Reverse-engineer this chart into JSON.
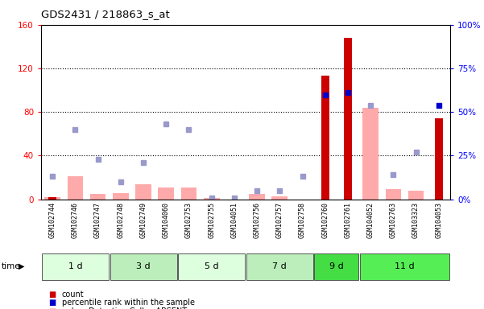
{
  "title": "GDS2431 / 218863_s_at",
  "samples": [
    "GSM102744",
    "GSM102746",
    "GSM102747",
    "GSM102748",
    "GSM102749",
    "GSM104060",
    "GSM102753",
    "GSM102755",
    "GSM104051",
    "GSM102756",
    "GSM102757",
    "GSM102758",
    "GSM102760",
    "GSM102761",
    "GSM104052",
    "GSM102763",
    "GSM103323",
    "GSM104053"
  ],
  "time_groups": [
    {
      "label": "1 d",
      "start": 0,
      "end": 3
    },
    {
      "label": "3 d",
      "start": 3,
      "end": 6
    },
    {
      "label": "5 d",
      "start": 6,
      "end": 9
    },
    {
      "label": "7 d",
      "start": 9,
      "end": 12
    },
    {
      "label": "9 d",
      "start": 12,
      "end": 14
    },
    {
      "label": "11 d",
      "start": 14,
      "end": 18
    }
  ],
  "group_colors": [
    "#ddffdd",
    "#bbeebb",
    "#ddffdd",
    "#bbeebb",
    "#44dd44",
    "#55ee55"
  ],
  "count": [
    2,
    0,
    0,
    0,
    0,
    0,
    0,
    0,
    0,
    0,
    0,
    0,
    113,
    148,
    0,
    0,
    0,
    74
  ],
  "percentile_rank": [
    null,
    null,
    null,
    null,
    null,
    null,
    null,
    null,
    null,
    null,
    null,
    null,
    60,
    61,
    null,
    null,
    null,
    54
  ],
  "value_absent": [
    2,
    21,
    5,
    6,
    14,
    11,
    11,
    1,
    0,
    5,
    3,
    0,
    0,
    0,
    84,
    9,
    8,
    0
  ],
  "rank_absent": [
    13,
    40,
    23,
    10,
    21,
    43,
    40,
    1,
    1,
    5,
    5,
    13,
    0,
    0,
    54,
    14,
    27,
    0
  ],
  "ylim_left": [
    0,
    160
  ],
  "ylim_right": [
    0,
    100
  ],
  "yticks_left": [
    0,
    40,
    80,
    120,
    160
  ],
  "yticks_right": [
    0,
    25,
    50,
    75,
    100
  ],
  "ytick_labels_right": [
    "0%",
    "25%",
    "50%",
    "75%",
    "100%"
  ],
  "count_color": "#cc0000",
  "percentile_color": "#0000cc",
  "value_absent_color": "#ffaaaa",
  "rank_absent_color": "#9999cc",
  "bg_color": "#ffffff",
  "plot_bg_color": "#ffffff",
  "xaxis_bg_color": "#cccccc"
}
